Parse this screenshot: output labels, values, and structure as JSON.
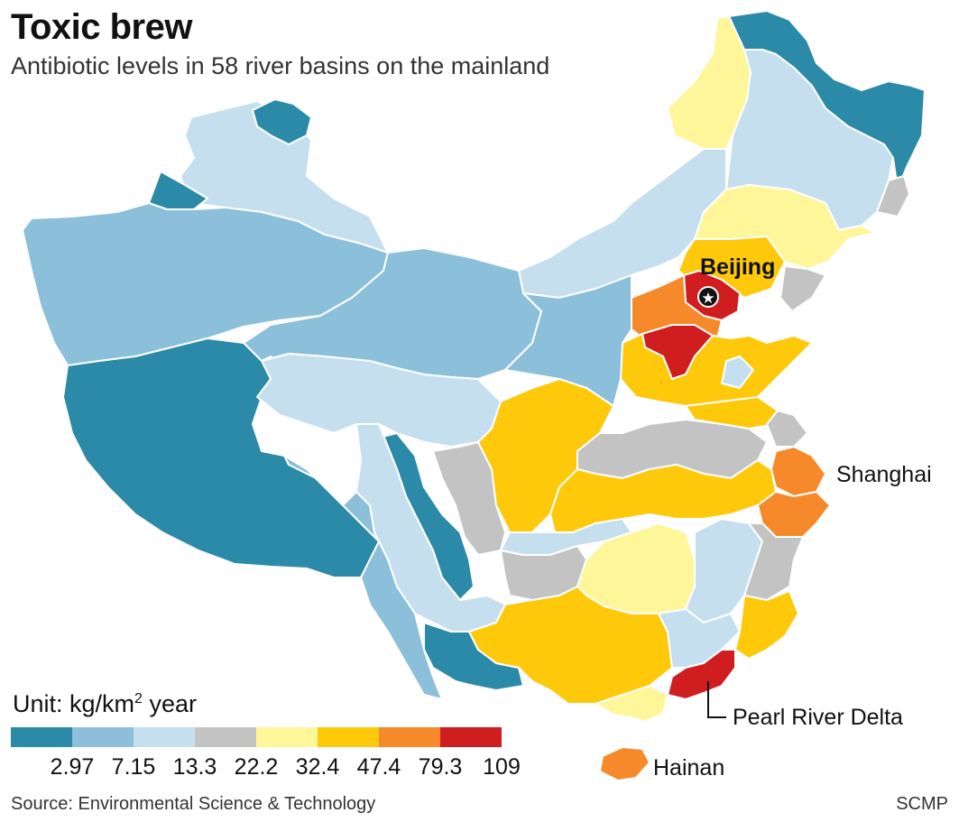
{
  "header": {
    "title": "Toxic brew",
    "subtitle": "Antibiotic levels in 58 river basins on the mainland"
  },
  "legend": {
    "unit_prefix": "Unit: kg/km",
    "unit_sup": "2",
    "unit_suffix": " year",
    "colors": [
      "#2b8aa8",
      "#8cbfda",
      "#c6dfee",
      "#c3c3c3",
      "#fef699",
      "#fec80b",
      "#f6892a",
      "#cf1d20"
    ],
    "ticks": [
      "2.97",
      "7.15",
      "13.3",
      "22.2",
      "32.4",
      "47.4",
      "79.3",
      "109"
    ]
  },
  "labels": {
    "beijing": "Beijing",
    "shanghai": "Shanghai",
    "pearl_river_delta": "Pearl River Delta",
    "hainan": "Hainan"
  },
  "footer": {
    "source": "Source: Environmental Science & Technology",
    "credit": "SCMP"
  }
}
